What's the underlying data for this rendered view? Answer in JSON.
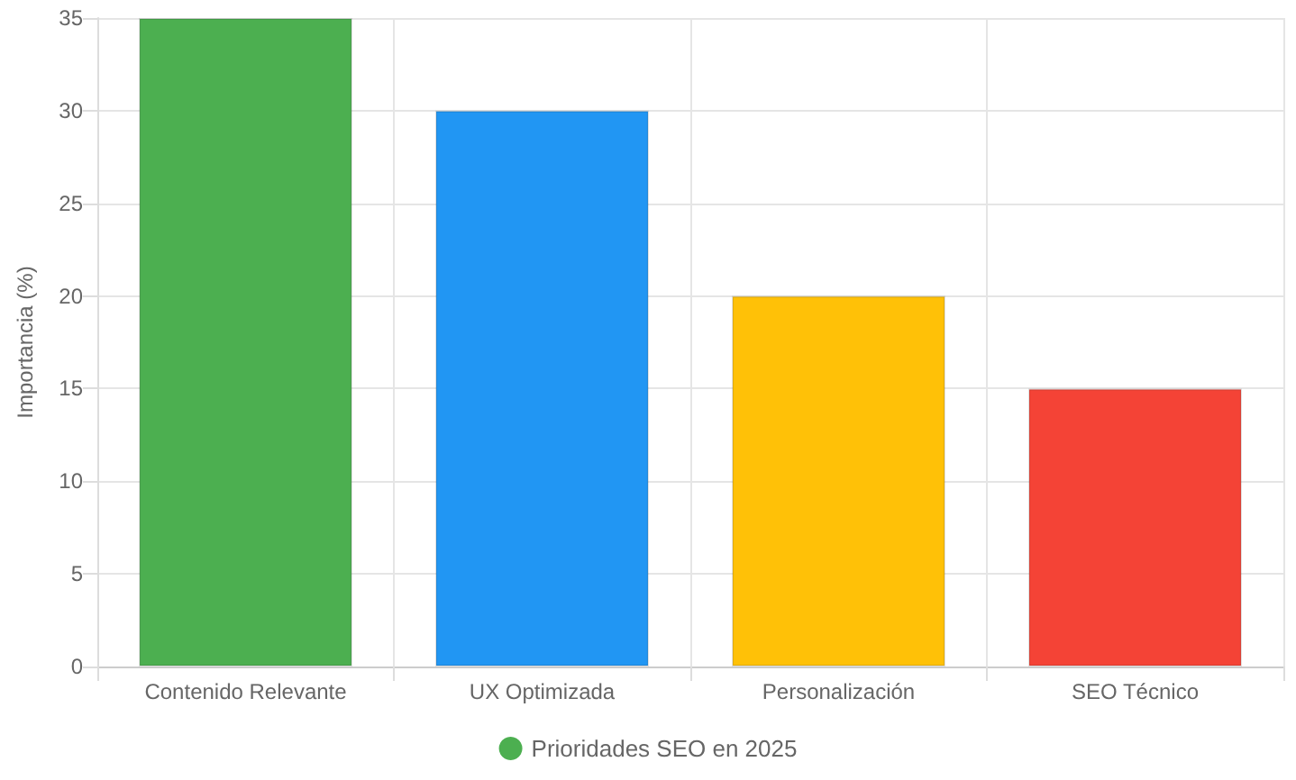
{
  "chart_data": {
    "type": "bar",
    "ylabel": "Importancia (%)",
    "categories": [
      "Contenido Relevante",
      "UX Optimizada",
      "Personalización",
      "SEO Técnico"
    ],
    "series": [
      {
        "name": "Prioridades SEO en 2025",
        "values": [
          35,
          30,
          20,
          15
        ],
        "colors": [
          "#4caf50",
          "#2196f3",
          "#ffc107",
          "#f44336"
        ]
      }
    ],
    "ylim": [
      0,
      35
    ],
    "yticks": [
      0,
      5,
      10,
      15,
      20,
      25,
      30,
      35
    ],
    "grid": true,
    "legend": "bottom"
  }
}
